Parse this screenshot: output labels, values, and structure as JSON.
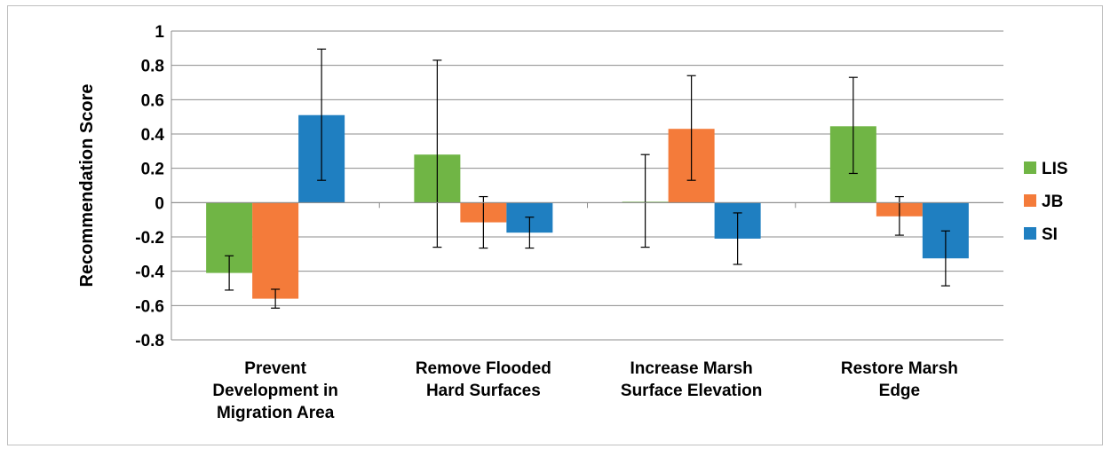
{
  "chart_data": {
    "type": "bar",
    "title": "",
    "xlabel": "",
    "ylabel": "Recommendation Score",
    "ylim": [
      -0.8,
      1
    ],
    "yticks": [
      1,
      0.8,
      0.6,
      0.4,
      0.2,
      0,
      -0.2,
      -0.4,
      -0.6,
      -0.8
    ],
    "ytick_labels": [
      "1",
      "0.8",
      "0.6",
      "0.4",
      "0.2",
      "0",
      "-0.2",
      "-0.4",
      "-0.6",
      "-0.8"
    ],
    "grid": true,
    "legend_position": "right",
    "categories": [
      [
        "Prevent",
        "Development in",
        "Migration Area"
      ],
      [
        "Remove Flooded",
        "Hard Surfaces"
      ],
      [
        "Increase Marsh",
        "Surface Elevation"
      ],
      [
        "Restore Marsh",
        "Edge"
      ]
    ],
    "series": [
      {
        "name": "LIS",
        "color": "#70b545",
        "values": [
          -0.41,
          0.28,
          0.005,
          0.445
        ],
        "err_low": [
          -0.51,
          -0.26,
          -0.26,
          0.17
        ],
        "err_high": [
          -0.31,
          0.83,
          0.28,
          0.73
        ]
      },
      {
        "name": "JB",
        "color": "#f47b3a",
        "values": [
          -0.56,
          -0.115,
          0.43,
          -0.08
        ],
        "err_low": [
          -0.615,
          -0.265,
          0.13,
          -0.19
        ],
        "err_high": [
          -0.505,
          0.035,
          0.74,
          0.035
        ]
      },
      {
        "name": "SI",
        "color": "#1f7fc1",
        "values": [
          0.51,
          -0.175,
          -0.21,
          -0.325
        ],
        "err_low": [
          0.13,
          -0.265,
          -0.36,
          -0.485
        ],
        "err_high": [
          0.895,
          -0.085,
          -0.06,
          -0.165
        ]
      }
    ]
  }
}
